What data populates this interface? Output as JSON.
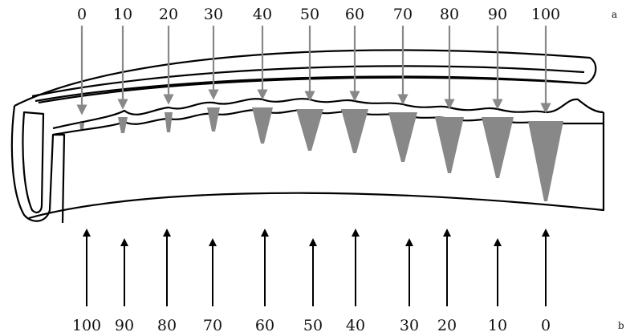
{
  "top": {
    "labels": [
      "0",
      "10",
      "20",
      "30",
      "40",
      "50",
      "60",
      "70",
      "80",
      "90",
      "100"
    ],
    "side_label": "a"
  },
  "bottom": {
    "labels": [
      "100",
      "90",
      "80",
      "70",
      "60",
      "50",
      "40",
      "30",
      "20",
      "10",
      "0"
    ],
    "side_label": "b"
  }
}
